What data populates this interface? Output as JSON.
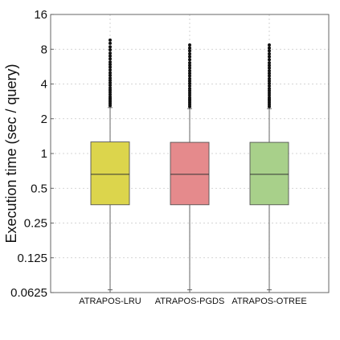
{
  "chart_data": {
    "type": "box",
    "ylabel": "Execution time (sec / query)",
    "yscale": "log2",
    "ylim": [
      0.0625,
      16
    ],
    "yticks": [
      0.0625,
      0.125,
      0.25,
      0.5,
      1,
      2,
      4,
      8,
      16
    ],
    "ytick_labels": [
      "0.0625",
      "0.125",
      "0.25",
      "0.5",
      "1",
      "2",
      "4",
      "8",
      "16"
    ],
    "grid": true,
    "categories": [
      "ATRAPOS-LRU",
      "ATRAPOS-PGDS",
      "ATRAPOS-OTREE"
    ],
    "series": [
      {
        "category": "ATRAPOS-LRU",
        "color": "#dcd54c",
        "whisker_low": 0.066,
        "q1": 0.36,
        "median": 0.66,
        "q3": 1.26,
        "whisker_high": 2.5,
        "outliers": [
          2.6,
          2.7,
          2.8,
          2.9,
          3.0,
          3.1,
          3.25,
          3.4,
          3.55,
          3.7,
          3.9,
          4.1,
          4.3,
          4.5,
          4.75,
          5.0,
          5.3,
          5.6,
          5.9,
          6.2,
          6.6,
          7.0,
          7.4,
          7.9,
          8.4,
          9.0,
          9.6
        ]
      },
      {
        "category": "ATRAPOS-PGDS",
        "color": "#e58a8c",
        "whisker_low": 0.066,
        "q1": 0.36,
        "median": 0.66,
        "q3": 1.25,
        "whisker_high": 2.45,
        "outliers": [
          2.55,
          2.65,
          2.75,
          2.85,
          2.95,
          3.05,
          3.2,
          3.35,
          3.5,
          3.65,
          3.85,
          4.05,
          4.25,
          4.45,
          4.7,
          4.95,
          5.2,
          5.5,
          5.8,
          6.1,
          6.5,
          6.9,
          7.3,
          7.75,
          8.2,
          8.7
        ]
      },
      {
        "category": "ATRAPOS-OTREE",
        "color": "#a8d08a",
        "whisker_low": 0.066,
        "q1": 0.36,
        "median": 0.66,
        "q3": 1.25,
        "whisker_high": 2.45,
        "outliers": [
          2.55,
          2.65,
          2.75,
          2.85,
          2.95,
          3.05,
          3.2,
          3.35,
          3.5,
          3.65,
          3.85,
          4.05,
          4.25,
          4.45,
          4.7,
          4.95,
          5.2,
          5.5,
          5.8,
          6.1,
          6.5,
          6.9,
          7.3,
          7.75,
          8.2,
          8.7
        ]
      }
    ]
  }
}
